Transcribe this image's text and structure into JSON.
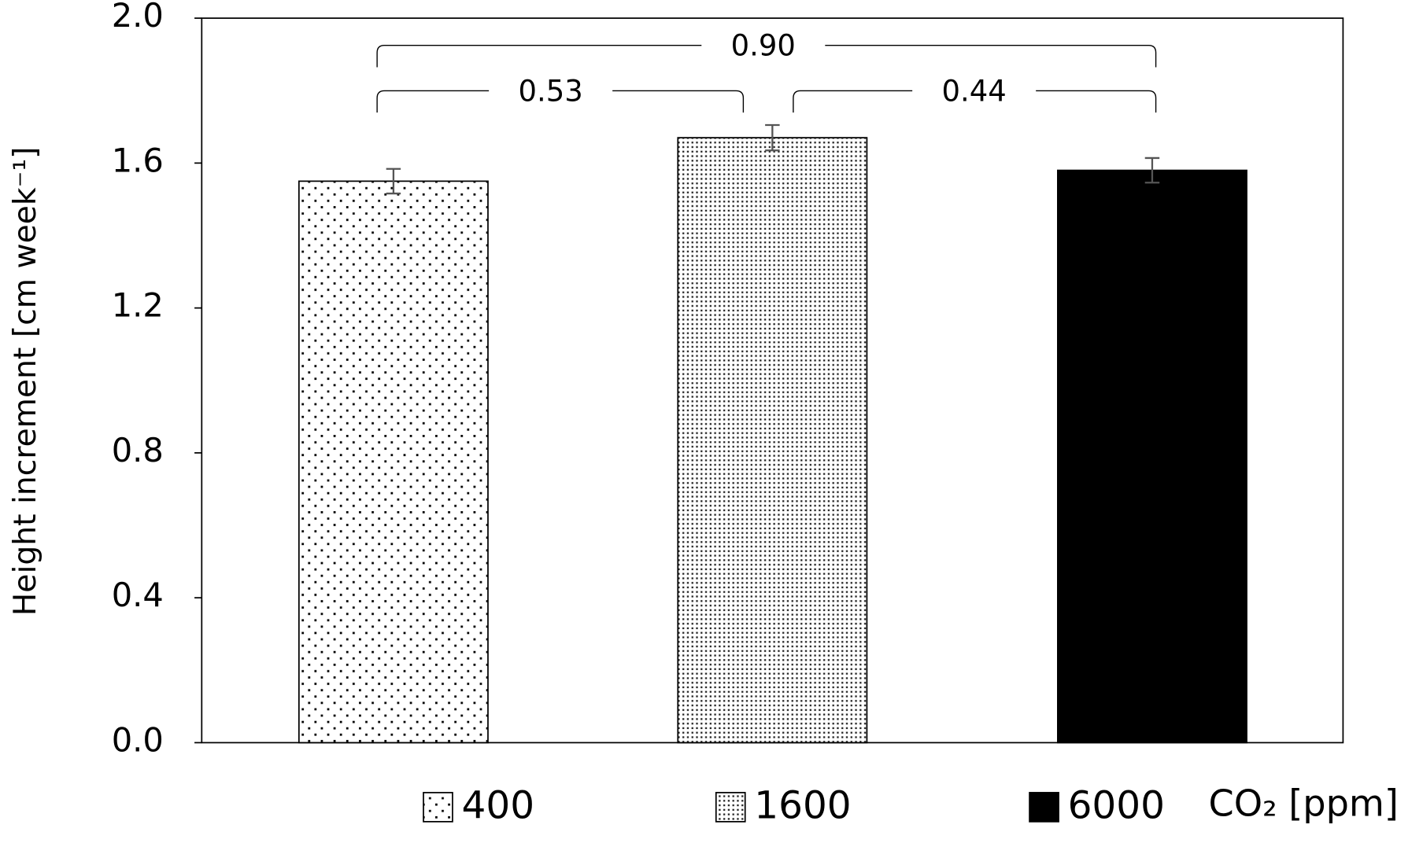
{
  "chart_data": {
    "type": "bar",
    "y_label": "Height increment [cm week⁻¹]",
    "categories": [
      "400",
      "1600",
      "6000"
    ],
    "values": [
      1.55,
      1.67,
      1.58
    ],
    "errors": [
      0.034,
      0.035,
      0.034
    ],
    "patterns": [
      "sparse-dots",
      "dense-dots",
      "solid"
    ],
    "legend_title": "CO₂ [ppm]",
    "annotations": [
      "0.53",
      "0.90",
      "0.44"
    ],
    "ylim": [
      0,
      2
    ],
    "yticks": [
      {
        "value": 0,
        "label": "0.0"
      },
      {
        "value": 0.4,
        "label": "0.4"
      },
      {
        "value": 0.8,
        "label": "0.8"
      },
      {
        "value": 1.2,
        "label": "1.2"
      },
      {
        "value": 1.6,
        "label": "1.6"
      },
      {
        "value": 2,
        "label": "2.0"
      }
    ]
  }
}
